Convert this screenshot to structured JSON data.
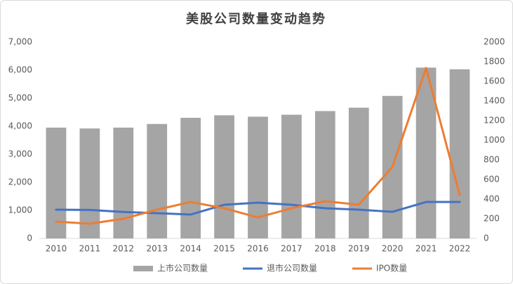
{
  "chart_data": {
    "type": "bar-line",
    "title": "美股公司数量变动趋势",
    "categories": [
      "2010",
      "2011",
      "2012",
      "2013",
      "2014",
      "2015",
      "2016",
      "2017",
      "2018",
      "2019",
      "2020",
      "2021",
      "2022"
    ],
    "series": [
      {
        "name": "上市公司数量",
        "type": "bar",
        "color": "#a5a5a5",
        "values": [
          3950,
          3920,
          3950,
          4080,
          4300,
          4390,
          4340,
          4410,
          4540,
          4660,
          5080,
          6090,
          6030
        ]
      },
      {
        "name": "退市公司数量",
        "type": "line",
        "axis": "y2",
        "color": "#4472c4",
        "values": [
          293,
          290,
          270,
          257,
          243,
          343,
          364,
          343,
          307,
          293,
          271,
          371,
          371
        ]
      },
      {
        "name": "IPO数量",
        "type": "line",
        "axis": "y2",
        "color": "#ed7d31",
        "values": [
          171,
          150,
          200,
          293,
          371,
          307,
          214,
          307,
          379,
          343,
          729,
          1736,
          443
        ]
      }
    ],
    "ylim": [
      0,
      7000
    ],
    "yticks": [
      0,
      {
        "value": 1000,
        "label": "1,000"
      },
      {
        "value": 2000,
        "label": "2,000"
      },
      {
        "value": 3000,
        "label": "3,000"
      },
      {
        "value": 4000,
        "label": "4,000"
      },
      {
        "value": 5000,
        "label": "5,000"
      },
      {
        "value": 6000,
        "label": "6,000"
      },
      {
        "value": 7000,
        "label": "7,000"
      }
    ],
    "y2lim": [
      0,
      2000
    ],
    "y2ticks": [
      0,
      200,
      400,
      600,
      800,
      1000,
      1200,
      1400,
      1600,
      1800,
      2000
    ],
    "legend": "bottom"
  }
}
